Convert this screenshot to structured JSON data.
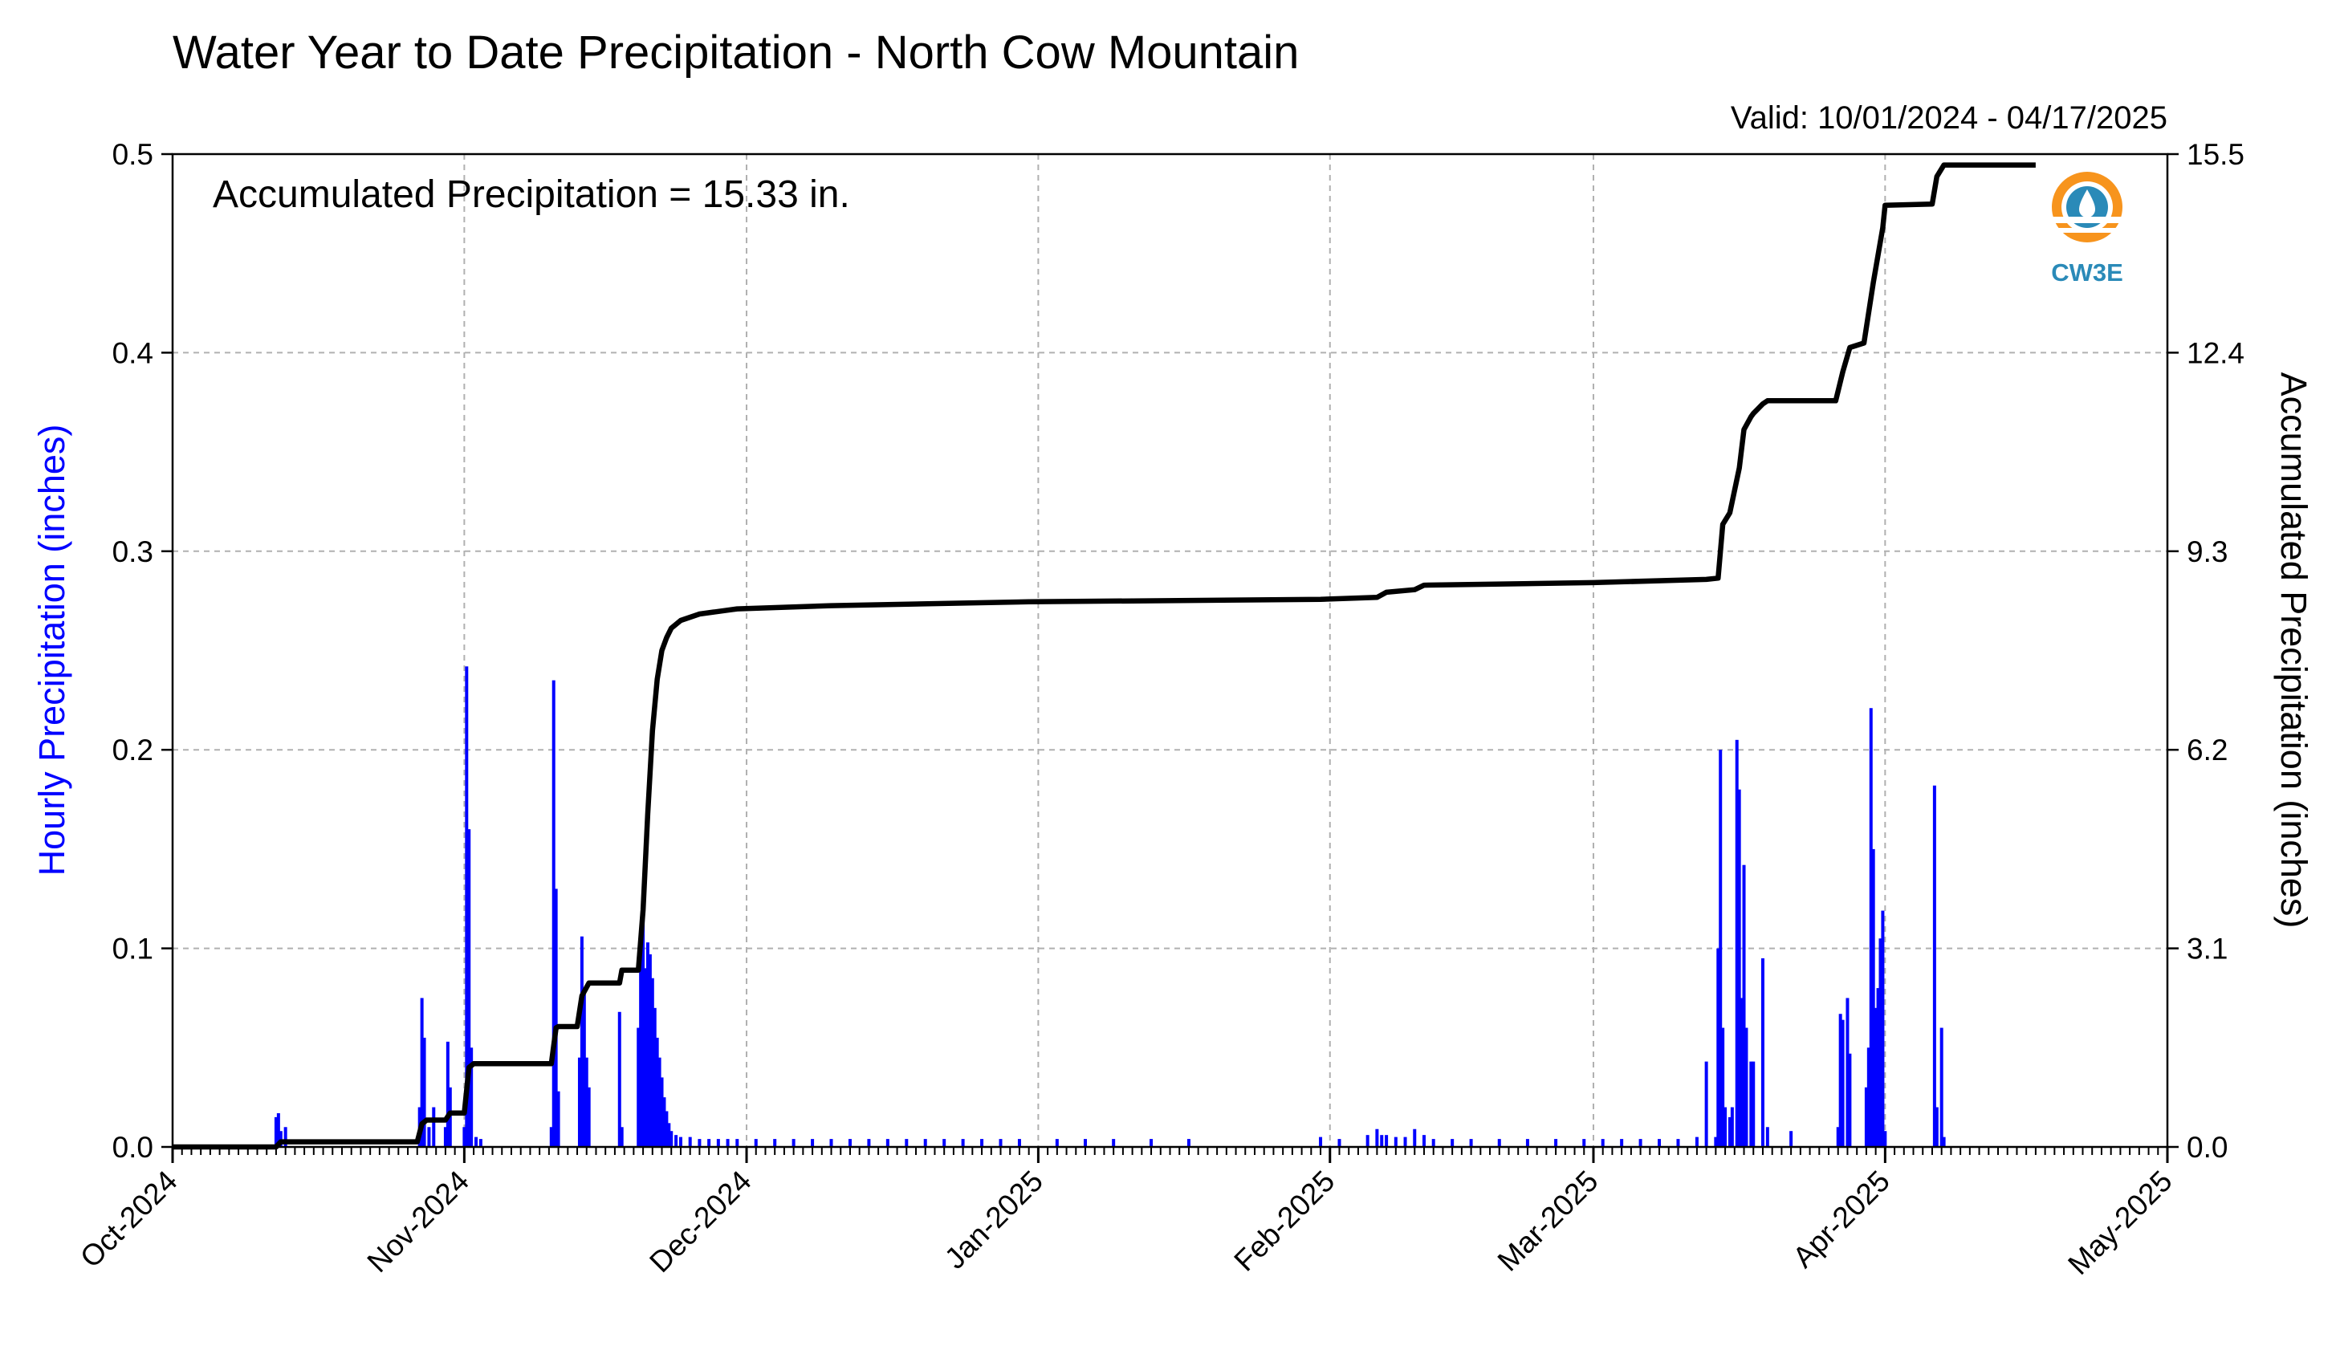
{
  "chart_data": {
    "type": "bar",
    "title": "Water Year to Date Precipitation - North Cow Mountain",
    "subtitle": "Valid: 10/01/2024 - 04/17/2025",
    "annotation": "Accumulated Precipitation = 15.33 in.",
    "ylabel": "Hourly Precipitation (inches)",
    "y2label": "Accumulated Precipitation (inches)",
    "ylim": [
      0,
      0.5
    ],
    "y2lim": [
      0,
      15.5
    ],
    "yticks": [
      "0.0",
      "0.1",
      "0.2",
      "0.3",
      "0.4",
      "0.5"
    ],
    "y2ticks": [
      "0.0",
      "3.1",
      "6.2",
      "9.3",
      "12.4",
      "15.5"
    ],
    "xlim": [
      "2024-10-01",
      "2025-05-01"
    ],
    "xticks": [
      {
        "date": "2024-10-01",
        "label": "Oct-2024"
      },
      {
        "date": "2024-11-01",
        "label": "Nov-2024"
      },
      {
        "date": "2024-12-01",
        "label": "Dec-2024"
      },
      {
        "date": "2025-01-01",
        "label": "Jan-2025"
      },
      {
        "date": "2025-02-01",
        "label": "Feb-2025"
      },
      {
        "date": "2025-03-01",
        "label": "Mar-2025"
      },
      {
        "date": "2025-04-01",
        "label": "Apr-2025"
      },
      {
        "date": "2025-05-01",
        "label": "May-2025"
      }
    ],
    "grid": true,
    "colors": {
      "hourly": "#0000ff",
      "accumulated": "#000000",
      "grid": "#b0b0b0"
    },
    "series": [
      {
        "type": "bar",
        "axis": "left",
        "points": [
          [
            "2024-10-12T00:00",
            0.015
          ],
          [
            "2024-10-12T06:00",
            0.017
          ],
          [
            "2024-10-12T12:00",
            0.008
          ],
          [
            "2024-10-13T00:00",
            0.01
          ],
          [
            "2024-10-27T06:00",
            0.02
          ],
          [
            "2024-10-27T12:00",
            0.075
          ],
          [
            "2024-10-27T18:00",
            0.055
          ],
          [
            "2024-10-28T06:00",
            0.01
          ],
          [
            "2024-10-28T18:00",
            0.02
          ],
          [
            "2024-10-30T00:00",
            0.01
          ],
          [
            "2024-10-30T06:00",
            0.053
          ],
          [
            "2024-10-30T12:00",
            0.03
          ],
          [
            "2024-11-01T00:00",
            0.01
          ],
          [
            "2024-11-01T06:00",
            0.242
          ],
          [
            "2024-11-01T12:00",
            0.16
          ],
          [
            "2024-11-01T18:00",
            0.05
          ],
          [
            "2024-11-02T06:00",
            0.005
          ],
          [
            "2024-11-02T18:00",
            0.004
          ],
          [
            "2024-11-10T06:00",
            0.01
          ],
          [
            "2024-11-10T12:00",
            0.235
          ],
          [
            "2024-11-10T18:00",
            0.13
          ],
          [
            "2024-11-11T00:00",
            0.028
          ],
          [
            "2024-11-13T06:00",
            0.045
          ],
          [
            "2024-11-13T12:00",
            0.106
          ],
          [
            "2024-11-13T18:00",
            0.08
          ],
          [
            "2024-11-14T00:00",
            0.045
          ],
          [
            "2024-11-14T06:00",
            0.03
          ],
          [
            "2024-11-17T12:00",
            0.068
          ],
          [
            "2024-11-17T18:00",
            0.01
          ],
          [
            "2024-11-19T12:00",
            0.06
          ],
          [
            "2024-11-19T18:00",
            0.098
          ],
          [
            "2024-11-20T00:00",
            0.125
          ],
          [
            "2024-11-20T06:00",
            0.09
          ],
          [
            "2024-11-20T12:00",
            0.103
          ],
          [
            "2024-11-20T18:00",
            0.097
          ],
          [
            "2024-11-21T00:00",
            0.085
          ],
          [
            "2024-11-21T06:00",
            0.07
          ],
          [
            "2024-11-21T12:00",
            0.055
          ],
          [
            "2024-11-21T18:00",
            0.045
          ],
          [
            "2024-11-22T00:00",
            0.035
          ],
          [
            "2024-11-22T06:00",
            0.025
          ],
          [
            "2024-11-22T12:00",
            0.018
          ],
          [
            "2024-11-22T18:00",
            0.012
          ],
          [
            "2024-11-23T00:00",
            0.008
          ],
          [
            "2024-11-23T12:00",
            0.006
          ],
          [
            "2024-11-24T00:00",
            0.005
          ],
          [
            "2024-11-25T00:00",
            0.005
          ],
          [
            "2024-11-26T00:00",
            0.004
          ],
          [
            "2024-11-27T00:00",
            0.004
          ],
          [
            "2024-11-28T00:00",
            0.004
          ],
          [
            "2024-11-29T00:00",
            0.004
          ],
          [
            "2024-11-30T00:00",
            0.004
          ],
          [
            "2024-12-02T00:00",
            0.004
          ],
          [
            "2024-12-04T00:00",
            0.004
          ],
          [
            "2024-12-06T00:00",
            0.004
          ],
          [
            "2024-12-08T00:00",
            0.004
          ],
          [
            "2024-12-10T00:00",
            0.004
          ],
          [
            "2024-12-12T00:00",
            0.004
          ],
          [
            "2024-12-14T00:00",
            0.004
          ],
          [
            "2024-12-16T00:00",
            0.004
          ],
          [
            "2024-12-18T00:00",
            0.004
          ],
          [
            "2024-12-20T00:00",
            0.004
          ],
          [
            "2024-12-22T00:00",
            0.004
          ],
          [
            "2024-12-24T00:00",
            0.004
          ],
          [
            "2024-12-26T00:00",
            0.004
          ],
          [
            "2024-12-28T00:00",
            0.004
          ],
          [
            "2024-12-30T00:00",
            0.004
          ],
          [
            "2025-01-03T00:00",
            0.004
          ],
          [
            "2025-01-06T00:00",
            0.004
          ],
          [
            "2025-01-09T00:00",
            0.004
          ],
          [
            "2025-01-13T00:00",
            0.004
          ],
          [
            "2025-01-17T00:00",
            0.004
          ],
          [
            "2025-01-31T00:00",
            0.005
          ],
          [
            "2025-02-02T00:00",
            0.004
          ],
          [
            "2025-02-05T00:00",
            0.006
          ],
          [
            "2025-02-06T00:00",
            0.009
          ],
          [
            "2025-02-06T12:00",
            0.006
          ],
          [
            "2025-02-07T00:00",
            0.006
          ],
          [
            "2025-02-08T00:00",
            0.005
          ],
          [
            "2025-02-09T00:00",
            0.005
          ],
          [
            "2025-02-10T00:00",
            0.009
          ],
          [
            "2025-02-11T00:00",
            0.006
          ],
          [
            "2025-02-12T00:00",
            0.004
          ],
          [
            "2025-02-14T00:00",
            0.004
          ],
          [
            "2025-02-16T00:00",
            0.004
          ],
          [
            "2025-02-19T00:00",
            0.004
          ],
          [
            "2025-02-22T00:00",
            0.004
          ],
          [
            "2025-02-25T00:00",
            0.004
          ],
          [
            "2025-02-28T00:00",
            0.004
          ],
          [
            "2025-03-02T00:00",
            0.004
          ],
          [
            "2025-03-04T00:00",
            0.004
          ],
          [
            "2025-03-06T00:00",
            0.004
          ],
          [
            "2025-03-08T00:00",
            0.004
          ],
          [
            "2025-03-10T00:00",
            0.004
          ],
          [
            "2025-03-12T00:00",
            0.005
          ],
          [
            "2025-03-13T00:00",
            0.043
          ],
          [
            "2025-03-14T00:00",
            0.005
          ],
          [
            "2025-03-14T06:00",
            0.1
          ],
          [
            "2025-03-14T12:00",
            0.2
          ],
          [
            "2025-03-14T18:00",
            0.06
          ],
          [
            "2025-03-15T00:00",
            0.02
          ],
          [
            "2025-03-15T12:00",
            0.015
          ],
          [
            "2025-03-15T18:00",
            0.02
          ],
          [
            "2025-03-16T06:00",
            0.205
          ],
          [
            "2025-03-16T12:00",
            0.18
          ],
          [
            "2025-03-16T18:00",
            0.075
          ],
          [
            "2025-03-17T00:00",
            0.142
          ],
          [
            "2025-03-17T06:00",
            0.06
          ],
          [
            "2025-03-17T18:00",
            0.043
          ],
          [
            "2025-03-18T00:00",
            0.043
          ],
          [
            "2025-03-19T00:00",
            0.095
          ],
          [
            "2025-03-19T12:00",
            0.01
          ],
          [
            "2025-03-22T00:00",
            0.008
          ],
          [
            "2025-03-27T00:00",
            0.01
          ],
          [
            "2025-03-27T06:00",
            0.067
          ],
          [
            "2025-03-27T12:00",
            0.064
          ],
          [
            "2025-03-28T00:00",
            0.075
          ],
          [
            "2025-03-28T06:00",
            0.047
          ],
          [
            "2025-03-30T00:00",
            0.03
          ],
          [
            "2025-03-30T06:00",
            0.05
          ],
          [
            "2025-03-30T12:00",
            0.221
          ],
          [
            "2025-03-30T18:00",
            0.15
          ],
          [
            "2025-03-31T00:00",
            0.07
          ],
          [
            "2025-03-31T06:00",
            0.08
          ],
          [
            "2025-03-31T12:00",
            0.105
          ],
          [
            "2025-03-31T18:00",
            0.119
          ],
          [
            "2025-04-01T00:00",
            0.008
          ],
          [
            "2025-04-06T06:00",
            0.182
          ],
          [
            "2025-04-06T12:00",
            0.02
          ],
          [
            "2025-04-07T00:00",
            0.06
          ],
          [
            "2025-04-07T06:00",
            0.005
          ]
        ]
      },
      {
        "type": "line",
        "axis": "right",
        "points": [
          [
            "2024-10-01T00:00",
            0.0
          ],
          [
            "2024-10-12T00:00",
            0.0
          ],
          [
            "2024-10-12T12:00",
            0.08
          ],
          [
            "2024-10-13T00:00",
            0.08
          ],
          [
            "2024-10-27T00:00",
            0.08
          ],
          [
            "2024-10-27T12:00",
            0.36
          ],
          [
            "2024-10-28T00:00",
            0.42
          ],
          [
            "2024-10-30T00:00",
            0.42
          ],
          [
            "2024-10-30T12:00",
            0.53
          ],
          [
            "2024-11-01T00:00",
            0.53
          ],
          [
            "2024-11-01T12:00",
            1.24
          ],
          [
            "2024-11-02T00:00",
            1.3
          ],
          [
            "2024-11-10T06:00",
            1.3
          ],
          [
            "2024-11-10T18:00",
            1.86
          ],
          [
            "2024-11-11T00:00",
            1.88
          ],
          [
            "2024-11-13T00:00",
            1.88
          ],
          [
            "2024-11-13T12:00",
            2.36
          ],
          [
            "2024-11-14T06:00",
            2.56
          ],
          [
            "2024-11-17T12:00",
            2.56
          ],
          [
            "2024-11-17T18:00",
            2.76
          ],
          [
            "2024-11-19T12:00",
            2.76
          ],
          [
            "2024-11-20T00:00",
            3.7
          ],
          [
            "2024-11-20T12:00",
            5.2
          ],
          [
            "2024-11-21T00:00",
            6.5
          ],
          [
            "2024-11-21T12:00",
            7.3
          ],
          [
            "2024-11-22T00:00",
            7.75
          ],
          [
            "2024-11-22T12:00",
            7.95
          ],
          [
            "2024-11-23T00:00",
            8.1
          ],
          [
            "2024-11-24T00:00",
            8.22
          ],
          [
            "2024-11-26T00:00",
            8.32
          ],
          [
            "2024-11-30T00:00",
            8.4
          ],
          [
            "2024-12-10T00:00",
            8.45
          ],
          [
            "2024-12-31T00:00",
            8.51
          ],
          [
            "2025-01-31T00:00",
            8.55
          ],
          [
            "2025-02-06T00:00",
            8.58
          ],
          [
            "2025-02-07T00:00",
            8.66
          ],
          [
            "2025-02-10T00:00",
            8.7
          ],
          [
            "2025-02-11T00:00",
            8.77
          ],
          [
            "2025-03-01T00:00",
            8.81
          ],
          [
            "2025-03-13T00:00",
            8.86
          ],
          [
            "2025-03-14T06:00",
            8.88
          ],
          [
            "2025-03-14T18:00",
            9.72
          ],
          [
            "2025-03-15T12:00",
            9.9
          ],
          [
            "2025-03-16T12:00",
            10.6
          ],
          [
            "2025-03-17T00:00",
            11.2
          ],
          [
            "2025-03-17T18:00",
            11.4
          ],
          [
            "2025-03-18T00:00",
            11.45
          ],
          [
            "2025-03-19T00:00",
            11.6
          ],
          [
            "2025-03-19T12:00",
            11.65
          ],
          [
            "2025-03-26T18:00",
            11.65
          ],
          [
            "2025-03-27T12:00",
            12.1
          ],
          [
            "2025-03-28T06:00",
            12.48
          ],
          [
            "2025-03-29T18:00",
            12.55
          ],
          [
            "2025-03-30T18:00",
            13.5
          ],
          [
            "2025-03-31T18:00",
            14.35
          ],
          [
            "2025-04-01T00:00",
            14.7
          ],
          [
            "2025-04-06T00:00",
            14.72
          ],
          [
            "2025-04-06T12:00",
            15.15
          ],
          [
            "2025-04-07T06:00",
            15.33
          ],
          [
            "2025-04-17T00:00",
            15.33
          ]
        ]
      }
    ]
  },
  "logo": {
    "text": "CW3E",
    "colors": {
      "orange": "#f7941d",
      "blue": "#2a8ab8"
    }
  }
}
